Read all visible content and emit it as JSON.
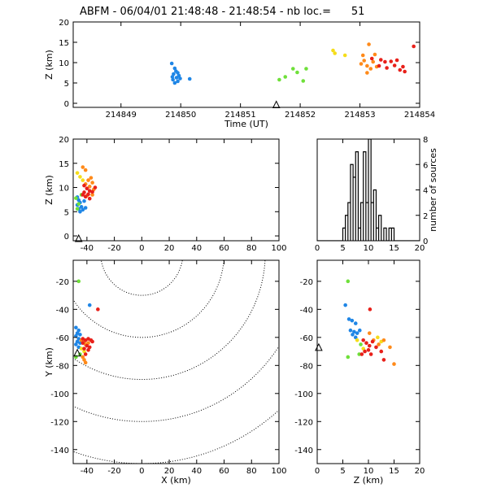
{
  "title": "ABFM - 06/04/01 21:48:48 - 21:48:54 - nb loc.=      51",
  "colors": {
    "blue": "#1f86e6",
    "green": "#6fe03a",
    "yellow": "#f5dd1a",
    "orange": "#ff8a1a",
    "red": "#e8201a",
    "black": "#000000"
  },
  "chart_data": [
    {
      "id": "time_height",
      "type": "scatter",
      "xlabel": "Time (UT)",
      "ylabel": "Z (km)",
      "xlim": [
        214848.2,
        214854.0
      ],
      "ylim": [
        -1,
        20
      ],
      "xticks": [
        214849,
        214850,
        214851,
        214852,
        214853,
        214854
      ],
      "xtick_labels": [
        "214849",
        "214850",
        "214851",
        "214852",
        "214853",
        "214854"
      ],
      "yticks": [
        0,
        5,
        10,
        15,
        20
      ],
      "markers": [
        {
          "x": 214851.6,
          "y": -0.3,
          "symbol": "triangle"
        }
      ],
      "points": [
        {
          "x": 214849.85,
          "y": 9.8,
          "c": "blue"
        },
        {
          "x": 214849.9,
          "y": 8.6,
          "c": "blue"
        },
        {
          "x": 214849.92,
          "y": 7.9,
          "c": "blue"
        },
        {
          "x": 214849.95,
          "y": 7.5,
          "c": "blue"
        },
        {
          "x": 214849.88,
          "y": 7.2,
          "c": "blue"
        },
        {
          "x": 214849.97,
          "y": 6.8,
          "c": "blue"
        },
        {
          "x": 214849.86,
          "y": 6.5,
          "c": "blue"
        },
        {
          "x": 214849.93,
          "y": 6.3,
          "c": "blue"
        },
        {
          "x": 214849.99,
          "y": 6.1,
          "c": "blue"
        },
        {
          "x": 214849.87,
          "y": 5.8,
          "c": "blue"
        },
        {
          "x": 214849.95,
          "y": 5.4,
          "c": "blue"
        },
        {
          "x": 214849.9,
          "y": 5.0,
          "c": "blue"
        },
        {
          "x": 214850.15,
          "y": 6.0,
          "c": "blue"
        },
        {
          "x": 214851.65,
          "y": 5.8,
          "c": "green"
        },
        {
          "x": 214851.75,
          "y": 6.5,
          "c": "green"
        },
        {
          "x": 214851.88,
          "y": 8.5,
          "c": "green"
        },
        {
          "x": 214851.95,
          "y": 7.6,
          "c": "green"
        },
        {
          "x": 214852.05,
          "y": 5.5,
          "c": "green"
        },
        {
          "x": 214852.1,
          "y": 8.5,
          "c": "green"
        },
        {
          "x": 214852.55,
          "y": 13.0,
          "c": "yellow"
        },
        {
          "x": 214852.58,
          "y": 12.3,
          "c": "yellow"
        },
        {
          "x": 214852.75,
          "y": 11.8,
          "c": "yellow"
        },
        {
          "x": 214853.02,
          "y": 9.7,
          "c": "orange"
        },
        {
          "x": 214853.05,
          "y": 11.8,
          "c": "orange"
        },
        {
          "x": 214853.07,
          "y": 10.5,
          "c": "orange"
        },
        {
          "x": 214853.12,
          "y": 9.2,
          "c": "orange"
        },
        {
          "x": 214853.15,
          "y": 14.5,
          "c": "orange"
        },
        {
          "x": 214853.12,
          "y": 7.5,
          "c": "orange"
        },
        {
          "x": 214853.18,
          "y": 8.5,
          "c": "orange"
        },
        {
          "x": 214853.22,
          "y": 10.2,
          "c": "orange"
        },
        {
          "x": 214853.25,
          "y": 12.0,
          "c": "orange"
        },
        {
          "x": 214853.28,
          "y": 9.0,
          "c": "orange"
        },
        {
          "x": 214853.2,
          "y": 11.0,
          "c": "red"
        },
        {
          "x": 214853.32,
          "y": 9.2,
          "c": "red"
        },
        {
          "x": 214853.35,
          "y": 10.7,
          "c": "red"
        },
        {
          "x": 214853.42,
          "y": 10.2,
          "c": "red"
        },
        {
          "x": 214853.45,
          "y": 8.7,
          "c": "red"
        },
        {
          "x": 214853.52,
          "y": 10.3,
          "c": "red"
        },
        {
          "x": 214853.58,
          "y": 9.3,
          "c": "red"
        },
        {
          "x": 214853.62,
          "y": 10.6,
          "c": "red"
        },
        {
          "x": 214853.67,
          "y": 8.2,
          "c": "red"
        },
        {
          "x": 214853.72,
          "y": 9.0,
          "c": "red"
        },
        {
          "x": 214853.75,
          "y": 7.8,
          "c": "red"
        },
        {
          "x": 214853.9,
          "y": 14.0,
          "c": "red"
        }
      ]
    },
    {
      "id": "x_height",
      "type": "scatter",
      "xlabel": "",
      "ylabel": "Z (km)",
      "xlim": [
        -50,
        100
      ],
      "ylim": [
        -1,
        20
      ],
      "xticks": [
        -40,
        -20,
        0,
        20,
        40,
        60,
        80,
        100
      ],
      "yticks": [
        0,
        5,
        10,
        15,
        20
      ],
      "markers": [
        {
          "x": -46,
          "y": -0.5,
          "symbol": "triangle"
        }
      ],
      "points": [
        {
          "x": -47,
          "y": 8.0,
          "c": "blue"
        },
        {
          "x": -46,
          "y": 7.4,
          "c": "blue"
        },
        {
          "x": -45,
          "y": 6.9,
          "c": "blue"
        },
        {
          "x": -47,
          "y": 6.4,
          "c": "blue"
        },
        {
          "x": -44,
          "y": 6.0,
          "c": "blue"
        },
        {
          "x": -46,
          "y": 5.6,
          "c": "blue"
        },
        {
          "x": -43,
          "y": 5.4,
          "c": "blue"
        },
        {
          "x": -45,
          "y": 5.0,
          "c": "blue"
        },
        {
          "x": -42,
          "y": 7.2,
          "c": "blue"
        },
        {
          "x": -41,
          "y": 5.8,
          "c": "blue"
        },
        {
          "x": -48,
          "y": 7.8,
          "c": "green"
        },
        {
          "x": -46,
          "y": 6.6,
          "c": "green"
        },
        {
          "x": -44,
          "y": 8.5,
          "c": "green"
        },
        {
          "x": -47,
          "y": 5.6,
          "c": "green"
        },
        {
          "x": -47,
          "y": 13.0,
          "c": "yellow"
        },
        {
          "x": -45,
          "y": 12.2,
          "c": "yellow"
        },
        {
          "x": -43,
          "y": 11.5,
          "c": "yellow"
        },
        {
          "x": -43,
          "y": 14.2,
          "c": "orange"
        },
        {
          "x": -41,
          "y": 13.6,
          "c": "orange"
        },
        {
          "x": -39,
          "y": 11.5,
          "c": "orange"
        },
        {
          "x": -37,
          "y": 12.0,
          "c": "orange"
        },
        {
          "x": -36,
          "y": 11.0,
          "c": "orange"
        },
        {
          "x": -41,
          "y": 10.7,
          "c": "orange"
        },
        {
          "x": -38,
          "y": 10.2,
          "c": "orange"
        },
        {
          "x": -35,
          "y": 9.6,
          "c": "orange"
        },
        {
          "x": -36,
          "y": 8.5,
          "c": "orange"
        },
        {
          "x": -40,
          "y": 8.3,
          "c": "orange"
        },
        {
          "x": -42,
          "y": 10.4,
          "c": "red"
        },
        {
          "x": -40,
          "y": 9.8,
          "c": "red"
        },
        {
          "x": -38,
          "y": 9.3,
          "c": "red"
        },
        {
          "x": -42,
          "y": 9.0,
          "c": "red"
        },
        {
          "x": -39,
          "y": 8.6,
          "c": "red"
        },
        {
          "x": -41,
          "y": 8.1,
          "c": "red"
        },
        {
          "x": -38,
          "y": 7.7,
          "c": "red"
        },
        {
          "x": -34,
          "y": 10.0,
          "c": "red"
        },
        {
          "x": -36,
          "y": 9.1,
          "c": "red"
        },
        {
          "x": -43,
          "y": 8.5,
          "c": "red"
        }
      ]
    },
    {
      "id": "height_histogram",
      "type": "bar",
      "ylabel": "number of sources",
      "xlim": [
        0,
        20
      ],
      "ylim": [
        0,
        8
      ],
      "xticks": [
        0,
        5,
        10,
        15,
        20
      ],
      "yticks": [
        0,
        2,
        4,
        6,
        8
      ],
      "bin_width": 0.5,
      "bins": [
        5.0,
        5.5,
        6.0,
        6.5,
        7.0,
        7.5,
        8.0,
        8.5,
        9.0,
        9.5,
        10.0,
        10.5,
        11.0,
        11.5,
        12.0,
        12.5,
        13.0,
        13.5,
        14.0,
        14.5,
        15.0
      ],
      "counts": [
        1,
        2,
        3,
        6,
        5,
        7,
        1,
        3,
        7,
        3,
        8,
        3,
        4,
        1,
        2,
        0,
        1,
        0,
        1,
        1,
        0
      ]
    },
    {
      "id": "plan_view",
      "type": "scatter",
      "xlabel": "X (km)",
      "ylabel": "Y (km)",
      "xlim": [
        -50,
        100
      ],
      "ylim": [
        -150,
        -5
      ],
      "xticks": [
        -40,
        -20,
        0,
        20,
        40,
        60,
        80,
        100
      ],
      "yticks": [
        -20,
        -40,
        -60,
        -80,
        -100,
        -120,
        -140
      ],
      "range_rings_km": [
        30,
        60,
        90,
        120,
        150
      ],
      "ring_center": [
        0,
        0
      ],
      "markers": [
        {
          "x": -47,
          "y": -71,
          "symbol": "triangle"
        }
      ],
      "points": [
        {
          "x": -46,
          "y": -20,
          "c": "green"
        },
        {
          "x": -38,
          "y": -37,
          "c": "blue"
        },
        {
          "x": -32,
          "y": -40,
          "c": "red"
        },
        {
          "x": -48,
          "y": -53,
          "c": "blue"
        },
        {
          "x": -46,
          "y": -55,
          "c": "blue"
        },
        {
          "x": -47,
          "y": -57,
          "c": "blue"
        },
        {
          "x": -45,
          "y": -58,
          "c": "blue"
        },
        {
          "x": -48,
          "y": -59,
          "c": "blue"
        },
        {
          "x": -46,
          "y": -61,
          "c": "blue"
        },
        {
          "x": -47,
          "y": -63,
          "c": "blue"
        },
        {
          "x": -45,
          "y": -64,
          "c": "blue"
        },
        {
          "x": -48,
          "y": -65,
          "c": "blue"
        },
        {
          "x": -46,
          "y": -67,
          "c": "blue"
        },
        {
          "x": -48,
          "y": -74,
          "c": "green"
        },
        {
          "x": -45,
          "y": -72,
          "c": "green"
        },
        {
          "x": -44,
          "y": -68,
          "c": "yellow"
        },
        {
          "x": -42,
          "y": -70,
          "c": "yellow"
        },
        {
          "x": -44,
          "y": -62,
          "c": "orange"
        },
        {
          "x": -42,
          "y": -63,
          "c": "orange"
        },
        {
          "x": -41,
          "y": -65,
          "c": "orange"
        },
        {
          "x": -39,
          "y": -64,
          "c": "orange"
        },
        {
          "x": -43,
          "y": -74,
          "c": "orange"
        },
        {
          "x": -42,
          "y": -76,
          "c": "orange"
        },
        {
          "x": -41,
          "y": -78,
          "c": "orange"
        },
        {
          "x": -43,
          "y": -61,
          "c": "red"
        },
        {
          "x": -41,
          "y": -62,
          "c": "red"
        },
        {
          "x": -39,
          "y": -61,
          "c": "red"
        },
        {
          "x": -37,
          "y": -62,
          "c": "red"
        },
        {
          "x": -43,
          "y": -64,
          "c": "red"
        },
        {
          "x": -40,
          "y": -66,
          "c": "red"
        },
        {
          "x": -38,
          "y": -67,
          "c": "red"
        },
        {
          "x": -36,
          "y": -63,
          "c": "red"
        },
        {
          "x": -42,
          "y": -68,
          "c": "red"
        },
        {
          "x": -39,
          "y": -69,
          "c": "red"
        },
        {
          "x": -41,
          "y": -72,
          "c": "red"
        }
      ]
    },
    {
      "id": "height_y",
      "type": "scatter",
      "xlabel": "Z (km)",
      "ylabel": "",
      "xlim": [
        0,
        20
      ],
      "ylim": [
        -150,
        -5
      ],
      "xticks": [
        0,
        5,
        10,
        15,
        20
      ],
      "yticks": [
        -20,
        -40,
        -60,
        -80,
        -100,
        -120,
        -140
      ],
      "markers": [
        {
          "x": 0.3,
          "y": -67,
          "symbol": "triangle"
        }
      ],
      "points": [
        {
          "x": 6.0,
          "y": -20,
          "c": "green"
        },
        {
          "x": 5.5,
          "y": -37,
          "c": "blue"
        },
        {
          "x": 10.3,
          "y": -40,
          "c": "red"
        },
        {
          "x": 6.2,
          "y": -47,
          "c": "blue"
        },
        {
          "x": 6.8,
          "y": -48,
          "c": "blue"
        },
        {
          "x": 7.5,
          "y": -50,
          "c": "blue"
        },
        {
          "x": 6.5,
          "y": -55,
          "c": "blue"
        },
        {
          "x": 7.2,
          "y": -56,
          "c": "blue"
        },
        {
          "x": 7.8,
          "y": -57,
          "c": "blue"
        },
        {
          "x": 6.9,
          "y": -58,
          "c": "blue"
        },
        {
          "x": 8.3,
          "y": -55,
          "c": "blue"
        },
        {
          "x": 7.5,
          "y": -60,
          "c": "blue"
        },
        {
          "x": 6.0,
          "y": -74,
          "c": "green"
        },
        {
          "x": 8.2,
          "y": -72,
          "c": "green"
        },
        {
          "x": 8.5,
          "y": -65,
          "c": "green"
        },
        {
          "x": 7.8,
          "y": -62,
          "c": "yellow"
        },
        {
          "x": 11.8,
          "y": -60,
          "c": "yellow"
        },
        {
          "x": 12.5,
          "y": -63,
          "c": "yellow"
        },
        {
          "x": 9.0,
          "y": -68,
          "c": "yellow"
        },
        {
          "x": 10.2,
          "y": -57,
          "c": "orange"
        },
        {
          "x": 11.0,
          "y": -62,
          "c": "orange"
        },
        {
          "x": 12.0,
          "y": -65,
          "c": "orange"
        },
        {
          "x": 13.0,
          "y": -62,
          "c": "orange"
        },
        {
          "x": 14.2,
          "y": -67,
          "c": "orange"
        },
        {
          "x": 15.0,
          "y": -79,
          "c": "orange"
        },
        {
          "x": 9.0,
          "y": -62,
          "c": "red"
        },
        {
          "x": 9.6,
          "y": -64,
          "c": "red"
        },
        {
          "x": 10.2,
          "y": -66,
          "c": "red"
        },
        {
          "x": 10.8,
          "y": -63,
          "c": "red"
        },
        {
          "x": 11.5,
          "y": -67,
          "c": "red"
        },
        {
          "x": 9.3,
          "y": -70,
          "c": "red"
        },
        {
          "x": 10.5,
          "y": -72,
          "c": "red"
        },
        {
          "x": 12.5,
          "y": -70,
          "c": "red"
        },
        {
          "x": 13.0,
          "y": -76,
          "c": "red"
        },
        {
          "x": 8.7,
          "y": -72,
          "c": "red"
        },
        {
          "x": 10.0,
          "y": -69,
          "c": "red"
        }
      ]
    }
  ]
}
